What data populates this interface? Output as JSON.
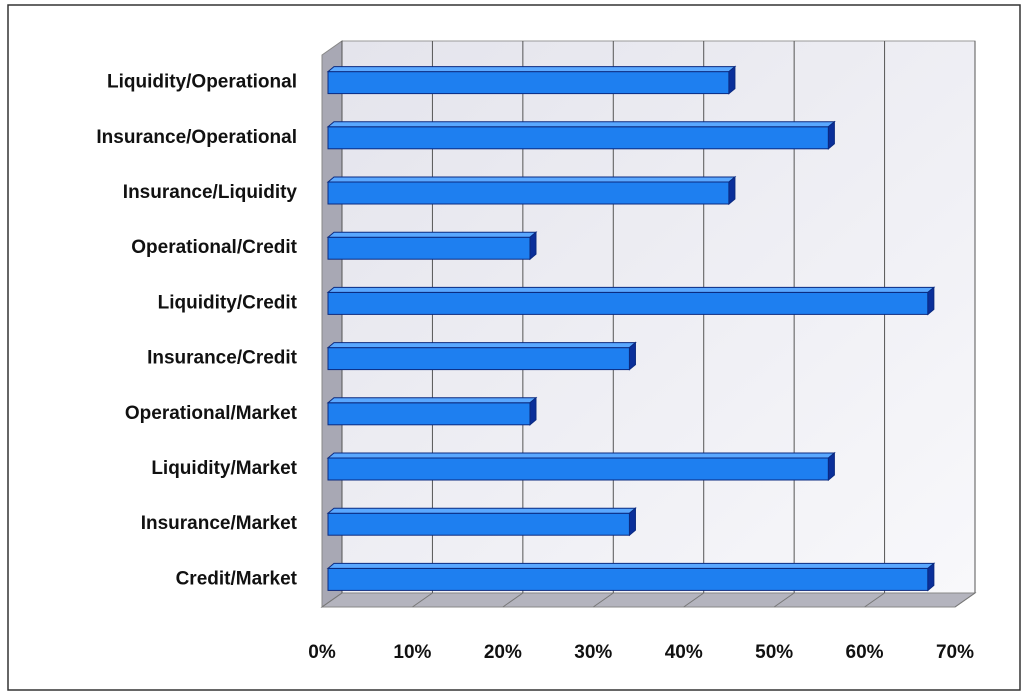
{
  "chart_data": {
    "type": "bar",
    "orientation": "horizontal",
    "categories": [
      "Liquidity/Operational",
      "Insurance/Operational",
      "Insurance/Liquidity",
      "Operational/Credit",
      "Liquidity/Credit",
      "Insurance/Credit",
      "Operational/Market",
      "Liquidity/Market",
      "Insurance/Market",
      "Credit/Market"
    ],
    "values": [
      45,
      56,
      45,
      23,
      67,
      34,
      23,
      56,
      34,
      67
    ],
    "color": "#1e7ff0",
    "xlim": [
      0,
      70
    ],
    "xticks": [
      {
        "value": 0,
        "label": "0%"
      },
      {
        "value": 10,
        "label": "10%"
      },
      {
        "value": 20,
        "label": "20%"
      },
      {
        "value": 30,
        "label": "30%"
      },
      {
        "value": 40,
        "label": "40%"
      },
      {
        "value": 50,
        "label": "50%"
      },
      {
        "value": 60,
        "label": "60%"
      },
      {
        "value": 70,
        "label": "70%"
      }
    ],
    "grid": true
  }
}
